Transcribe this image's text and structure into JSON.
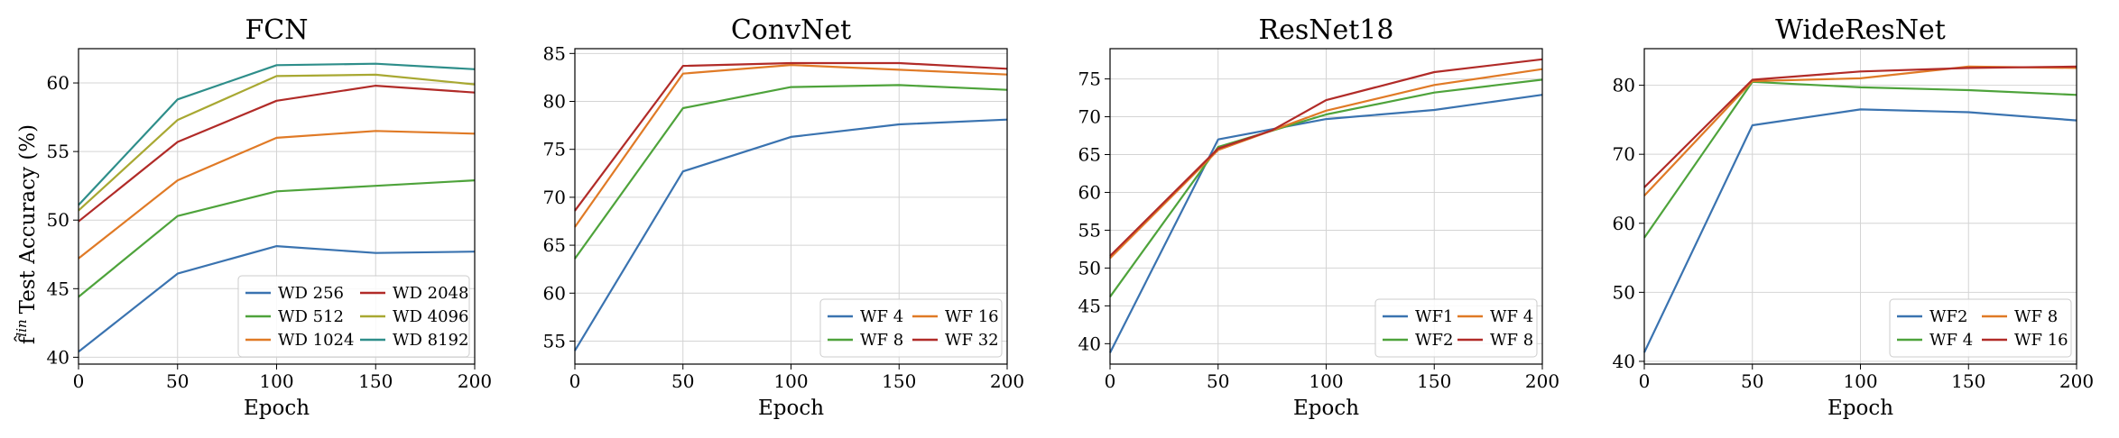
{
  "figure_ylabel": "Test Accuracy (%)",
  "figure_ylabel_symbol": "f̂",
  "figure_ylabel_superscript": "lin",
  "colors": {
    "c1": "#3a73b0",
    "c2": "#4ea33b",
    "c3": "#e07a26",
    "c4": "#b12b28",
    "c5": "#a8a832",
    "c6": "#2e8e8a"
  },
  "chart_data": [
    {
      "type": "line",
      "title": "FCN",
      "xlabel": "Epoch",
      "ylabel": "Test Accuracy (%)",
      "x": [
        0,
        50,
        100,
        150,
        200
      ],
      "xticks": [
        0,
        50,
        100,
        150,
        200
      ],
      "xlim": [
        0,
        200
      ],
      "yticks": [
        40,
        45,
        50,
        55,
        60
      ],
      "ylim": [
        39.5,
        62.5
      ],
      "legend_position": "bottom-right",
      "legend_columns": 2,
      "series": [
        {
          "name": "WD 256",
          "color": "#3a73b0",
          "values": [
            40.4,
            46.1,
            48.1,
            47.6,
            47.7
          ]
        },
        {
          "name": "WD 512",
          "color": "#4ea33b",
          "values": [
            44.4,
            50.3,
            52.1,
            52.5,
            52.9
          ]
        },
        {
          "name": "WD 1024",
          "color": "#e07a26",
          "values": [
            47.2,
            52.9,
            56.0,
            56.5,
            56.3
          ]
        },
        {
          "name": "WD 2048",
          "color": "#b12b28",
          "values": [
            49.9,
            55.7,
            58.7,
            59.8,
            59.3
          ]
        },
        {
          "name": "WD 4096",
          "color": "#a8a832",
          "values": [
            50.7,
            57.3,
            60.5,
            60.6,
            59.9
          ]
        },
        {
          "name": "WD 8192",
          "color": "#2e8e8a",
          "values": [
            51.1,
            58.8,
            61.3,
            61.4,
            61.0
          ]
        }
      ]
    },
    {
      "type": "line",
      "title": "ConvNet",
      "xlabel": "Epoch",
      "ylabel": "",
      "x": [
        0,
        50,
        100,
        150,
        200
      ],
      "xticks": [
        0,
        50,
        100,
        150,
        200
      ],
      "xlim": [
        0,
        200
      ],
      "yticks": [
        55,
        60,
        65,
        70,
        75,
        80,
        85
      ],
      "ylim": [
        52.6,
        85.5
      ],
      "legend_position": "bottom-right",
      "legend_columns": 2,
      "series": [
        {
          "name": "WF 4",
          "color": "#3a73b0",
          "values": [
            54.0,
            72.7,
            76.3,
            77.6,
            78.1
          ]
        },
        {
          "name": "WF 8",
          "color": "#4ea33b",
          "values": [
            63.6,
            79.3,
            81.5,
            81.7,
            81.2
          ]
        },
        {
          "name": "WF 16",
          "color": "#e07a26",
          "values": [
            66.9,
            82.9,
            83.8,
            83.3,
            82.8
          ]
        },
        {
          "name": "WF 32",
          "color": "#b12b28",
          "values": [
            68.6,
            83.7,
            84.0,
            84.0,
            83.4
          ]
        }
      ]
    },
    {
      "type": "line",
      "title": "ResNet18",
      "xlabel": "Epoch",
      "ylabel": "",
      "x": [
        0,
        50,
        100,
        150,
        200
      ],
      "xticks": [
        0,
        50,
        100,
        150,
        200
      ],
      "xlim": [
        0,
        200
      ],
      "yticks": [
        40,
        45,
        50,
        55,
        60,
        65,
        70,
        75
      ],
      "ylim": [
        37.3,
        79.0
      ],
      "legend_position": "bottom-right",
      "legend_columns": 2,
      "series": [
        {
          "name": "WF1",
          "color": "#3a73b0",
          "x": [
            0,
            50,
            100,
            150,
            200
          ],
          "values": [
            38.8,
            67.0,
            69.7,
            70.9,
            72.9
          ]
        },
        {
          "name": "WF2",
          "color": "#4ea33b",
          "x": [
            0,
            50,
            100,
            150,
            200
          ],
          "values": [
            46.2,
            66.0,
            70.3,
            73.2,
            74.9
          ]
        },
        {
          "name": "WF 4",
          "color": "#e07a26",
          "x": [
            0,
            50,
            100,
            150,
            200
          ],
          "values": [
            51.3,
            65.6,
            70.8,
            74.2,
            76.3
          ]
        },
        {
          "name": "WF 8",
          "color": "#b12b28",
          "x": [
            0,
            50,
            75,
            100,
            150,
            200
          ],
          "values": [
            51.6,
            65.8,
            68.2,
            72.2,
            75.9,
            77.6
          ]
        }
      ]
    },
    {
      "type": "line",
      "title": "WideResNet",
      "xlabel": "Epoch",
      "ylabel": "",
      "x": [
        0,
        50,
        100,
        150,
        200
      ],
      "xticks": [
        0,
        50,
        100,
        150,
        200
      ],
      "xlim": [
        0,
        200
      ],
      "yticks": [
        40,
        50,
        60,
        70,
        80
      ],
      "ylim": [
        39.6,
        85.3
      ],
      "legend_position": "bottom-right",
      "legend_columns": 2,
      "series": [
        {
          "name": "WF2",
          "color": "#3a73b0",
          "values": [
            41.3,
            74.2,
            76.5,
            76.1,
            74.9
          ]
        },
        {
          "name": "WF 4",
          "color": "#4ea33b",
          "values": [
            57.9,
            80.5,
            79.7,
            79.3,
            78.6
          ]
        },
        {
          "name": "WF 8",
          "color": "#e07a26",
          "values": [
            64.0,
            80.6,
            81.0,
            82.7,
            82.5
          ]
        },
        {
          "name": "WF 16",
          "color": "#b12b28",
          "values": [
            65.2,
            80.8,
            82.0,
            82.5,
            82.7
          ]
        }
      ]
    }
  ]
}
